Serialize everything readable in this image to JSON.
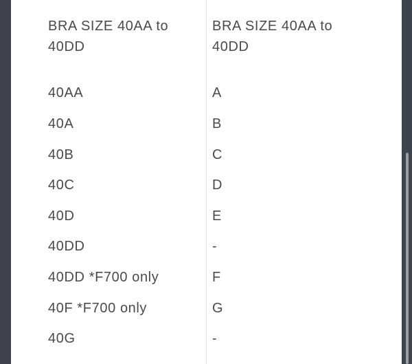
{
  "table": {
    "headers": [
      "BRA SIZE 40AA to 40DD",
      "BRA SIZE 40AA to 40DD"
    ],
    "rows": [
      [
        "40AA",
        "A"
      ],
      [
        "40A",
        "B"
      ],
      [
        "40B",
        "C"
      ],
      [
        "40C",
        "D"
      ],
      [
        "40D",
        "E"
      ],
      [
        "40DD",
        "-"
      ],
      [
        "40DD *F700 only",
        "F"
      ],
      [
        "40F *F700 only",
        "G"
      ],
      [
        "40G",
        "-"
      ]
    ]
  }
}
